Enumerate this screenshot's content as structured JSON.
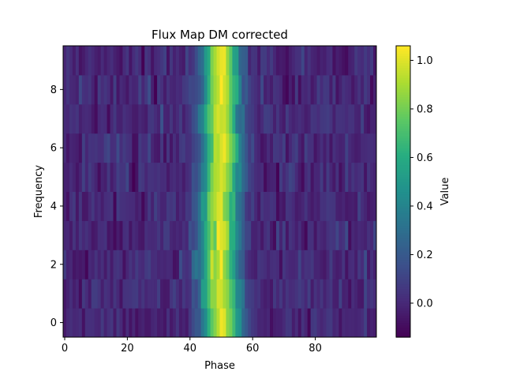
{
  "chart_data": {
    "type": "heatmap",
    "title": "Flux Map DM corrected",
    "xlabel": "Phase",
    "ylabel": "Frequency",
    "xlim": [
      -0.5,
      99.5
    ],
    "ylim": [
      -0.5,
      9.5
    ],
    "rows": 10,
    "cols": 100,
    "x_ticks": [
      "0",
      "20",
      "40",
      "60",
      "80"
    ],
    "y_ticks": [
      "0",
      "2",
      "4",
      "6",
      "8"
    ],
    "pulse_center_phase": 50,
    "pulse_peak_value": 1.0,
    "noise_level": 0.05,
    "colormap": "viridis",
    "colorbar": {
      "label": "Value",
      "range": [
        -0.14,
        1.06
      ],
      "ticks": [
        "0.0",
        "0.2",
        "0.4",
        "0.6",
        "0.8",
        "1.0"
      ]
    }
  }
}
